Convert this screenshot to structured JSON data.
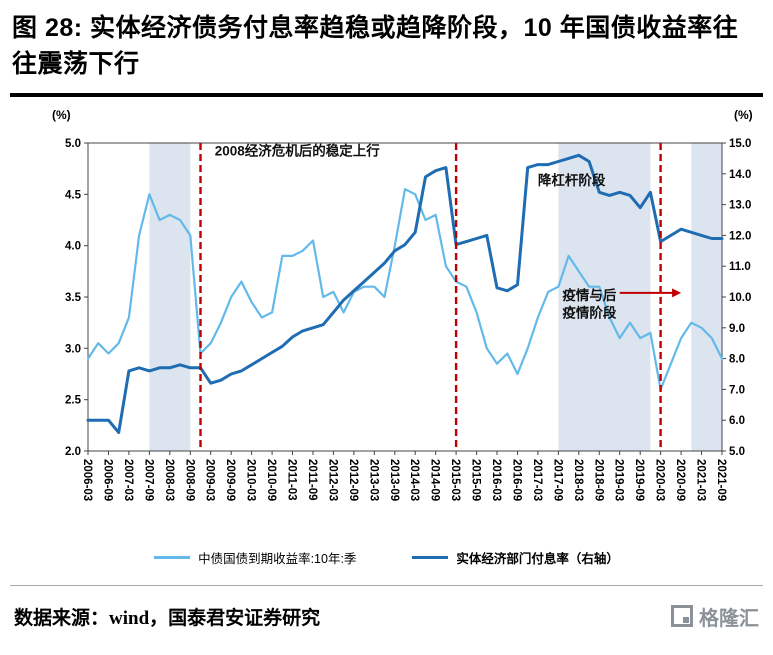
{
  "header": {
    "title": "图 28: 实体经济债务付息率趋稳或趋降阶段，10 年国债收益率往往震荡下行"
  },
  "footer": {
    "source": "数据来源：wind，国泰君安证券研究",
    "logo_text": "格隆汇"
  },
  "chart_data": {
    "type": "line",
    "x": [
      "2006-03",
      "2006-06",
      "2006-09",
      "2006-12",
      "2007-03",
      "2007-06",
      "2007-09",
      "2007-12",
      "2008-03",
      "2008-06",
      "2008-09",
      "2008-12",
      "2009-03",
      "2009-06",
      "2009-09",
      "2009-12",
      "2010-03",
      "2010-06",
      "2010-09",
      "2010-12",
      "2011-03",
      "2011-06",
      "2011-09",
      "2011-12",
      "2012-03",
      "2012-06",
      "2012-09",
      "2012-12",
      "2013-03",
      "2013-06",
      "2013-09",
      "2013-12",
      "2014-03",
      "2014-06",
      "2014-09",
      "2014-12",
      "2015-03",
      "2015-06",
      "2015-09",
      "2015-12",
      "2016-03",
      "2016-06",
      "2016-09",
      "2016-12",
      "2017-03",
      "2017-06",
      "2017-09",
      "2017-12",
      "2018-03",
      "2018-06",
      "2018-09",
      "2018-12",
      "2019-03",
      "2019-06",
      "2019-09",
      "2019-12",
      "2020-03",
      "2020-06",
      "2020-09",
      "2020-12",
      "2021-03",
      "2021-06",
      "2021-09"
    ],
    "series": [
      {
        "name": "中债国债到期收益率:10年:季",
        "axis": "left",
        "color": "#63b9e9",
        "width": 2.2,
        "values": [
          2.9,
          3.05,
          2.95,
          3.05,
          3.3,
          4.1,
          4.5,
          4.25,
          4.3,
          4.25,
          4.1,
          2.95,
          3.05,
          3.25,
          3.5,
          3.65,
          3.45,
          3.3,
          3.35,
          3.9,
          3.9,
          3.95,
          4.05,
          3.5,
          3.55,
          3.35,
          3.55,
          3.6,
          3.6,
          3.5,
          4.0,
          4.55,
          4.5,
          4.25,
          4.3,
          3.8,
          3.65,
          3.6,
          3.35,
          3.0,
          2.85,
          2.95,
          2.75,
          3.0,
          3.3,
          3.55,
          3.6,
          3.9,
          3.75,
          3.6,
          3.6,
          3.3,
          3.1,
          3.25,
          3.1,
          3.15,
          2.6,
          2.85,
          3.1,
          3.25,
          3.2,
          3.1,
          2.9
        ]
      },
      {
        "name": "实体经济部门付息率（右轴）",
        "axis": "right",
        "color": "#1f6cb2",
        "width": 3,
        "values": [
          6.0,
          6.0,
          6.0,
          5.6,
          7.6,
          7.7,
          7.6,
          7.7,
          7.7,
          7.8,
          7.7,
          7.7,
          7.2,
          7.3,
          7.5,
          7.6,
          7.8,
          8.0,
          8.2,
          8.4,
          8.7,
          8.9,
          9.0,
          9.1,
          9.5,
          9.9,
          10.2,
          10.5,
          10.8,
          11.1,
          11.5,
          11.7,
          12.1,
          13.9,
          14.1,
          14.2,
          11.7,
          11.8,
          11.9,
          12.0,
          10.3,
          10.2,
          10.4,
          14.2,
          14.3,
          14.3,
          14.4,
          14.5,
          14.6,
          14.4,
          13.4,
          13.3,
          13.4,
          13.3,
          12.9,
          13.4,
          11.8,
          12.0,
          12.2,
          12.1,
          12.0,
          11.9,
          11.9
        ]
      }
    ],
    "left_axis": {
      "label": "(%)",
      "min": 2.0,
      "max": 5.0,
      "ticks": [
        "2.0",
        "2.5",
        "3.0",
        "3.5",
        "4.0",
        "4.5",
        "5.0"
      ]
    },
    "right_axis": {
      "label": "(%)",
      "min": 5.0,
      "max": 15.0,
      "ticks": [
        "5.0",
        "6.0",
        "7.0",
        "8.0",
        "9.0",
        "10.0",
        "11.0",
        "12.0",
        "13.0",
        "14.0",
        "15.0"
      ]
    },
    "shade_color": "#dbe4ef",
    "shaded_regions": [
      [
        "2007-09",
        "2008-09"
      ],
      [
        "2017-09",
        "2019-12"
      ],
      [
        "2020-12",
        "2021-09"
      ]
    ],
    "vlines": {
      "color": "#c00000",
      "at": [
        "2008-12",
        "2015-03",
        "2020-03"
      ]
    },
    "annotations": [
      {
        "text": "2008经济危机后的稳定上行",
        "x": "2009-03",
        "value": 4.88,
        "dx": 4
      },
      {
        "text": "降杠杆阶段",
        "x": "2017-03",
        "value": 4.59,
        "dx": 0
      },
      {
        "text": "疫情与后",
        "x": "2017-09",
        "value": 3.47,
        "dx": 4
      },
      {
        "text": "疫情阶段",
        "x": "2017-09",
        "value": 3.3,
        "dx": 4
      }
    ],
    "arrow": {
      "x_from": "2019-03",
      "x_to": "2020-09",
      "value": 3.54,
      "color": "#c00000"
    },
    "grid": false,
    "legend_position": "bottom"
  }
}
